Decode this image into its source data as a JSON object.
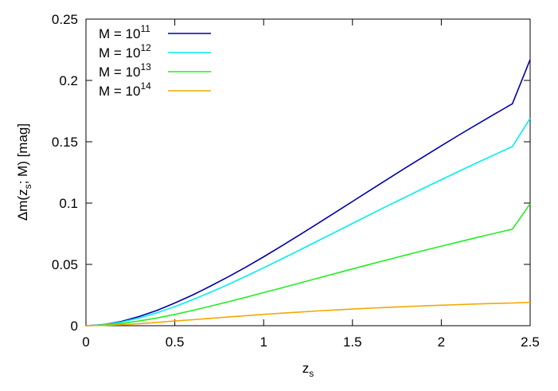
{
  "chart_data": {
    "type": "line",
    "xlabel": {
      "base": "z",
      "sub": "s"
    },
    "ylabel": {
      "pre": "Δm(z",
      "sub": "s",
      "post": "; M) [mag]"
    },
    "xlim": [
      0,
      2.5
    ],
    "ylim": [
      0,
      0.25
    ],
    "x_ticks": [
      "0",
      "0.5",
      "1",
      "1.5",
      "2",
      "2.5"
    ],
    "y_ticks": [
      "0",
      "0.05",
      "0.1",
      "0.15",
      "0.2",
      "0.25"
    ],
    "grid": false,
    "legend_position": "top-left",
    "x": [
      0,
      0.1,
      0.2,
      0.3,
      0.4,
      0.5,
      0.6,
      0.7,
      0.8,
      0.9,
      1.0,
      1.1,
      1.2,
      1.3,
      1.4,
      1.5,
      1.6,
      1.7,
      1.8,
      1.9,
      2.0,
      2.1,
      2.2,
      2.3,
      2.4,
      2.5
    ],
    "series": [
      {
        "name": "M = 10^11",
        "label_base": "M = 10",
        "label_sup": "11",
        "color": "#0000a8",
        "values": [
          0,
          0.0009,
          0.0035,
          0.0075,
          0.0125,
          0.0185,
          0.025,
          0.0322,
          0.0398,
          0.0478,
          0.0562,
          0.0649,
          0.0738,
          0.0829,
          0.0921,
          0.1013,
          0.1105,
          0.1197,
          0.1288,
          0.1378,
          0.1467,
          0.1555,
          0.1641,
          0.1726,
          0.181,
          0.217
        ]
      },
      {
        "name": "M = 10^12",
        "label_base": "M = 10",
        "label_sup": "12",
        "color": "#00eeee",
        "values": [
          0,
          0.0008,
          0.003,
          0.0063,
          0.0106,
          0.0156,
          0.0212,
          0.0272,
          0.0336,
          0.0403,
          0.0472,
          0.0543,
          0.0615,
          0.0688,
          0.0761,
          0.0834,
          0.0907,
          0.0979,
          0.105,
          0.1121,
          0.1191,
          0.126,
          0.1328,
          0.1395,
          0.1461,
          0.169
        ]
      },
      {
        "name": "M = 10^13",
        "label_base": "M = 10",
        "label_sup": "13",
        "color": "#22ee22",
        "values": [
          0,
          0.0005,
          0.0018,
          0.0038,
          0.0063,
          0.0092,
          0.0124,
          0.0159,
          0.0195,
          0.0232,
          0.027,
          0.0308,
          0.0347,
          0.0386,
          0.0424,
          0.0463,
          0.0501,
          0.0539,
          0.0576,
          0.0613,
          0.0649,
          0.0684,
          0.0719,
          0.0753,
          0.0787,
          0.0995
        ]
      },
      {
        "name": "M = 10^14",
        "label_base": "M = 10",
        "label_sup": "14",
        "color": "#f2a800",
        "values": [
          0,
          0.0002,
          0.0008,
          0.0017,
          0.0027,
          0.0038,
          0.0049,
          0.006,
          0.0071,
          0.0082,
          0.0092,
          0.0102,
          0.0111,
          0.012,
          0.0128,
          0.0136,
          0.0143,
          0.015,
          0.0156,
          0.0162,
          0.0167,
          0.0172,
          0.0177,
          0.0181,
          0.0185,
          0.019
        ]
      }
    ]
  }
}
